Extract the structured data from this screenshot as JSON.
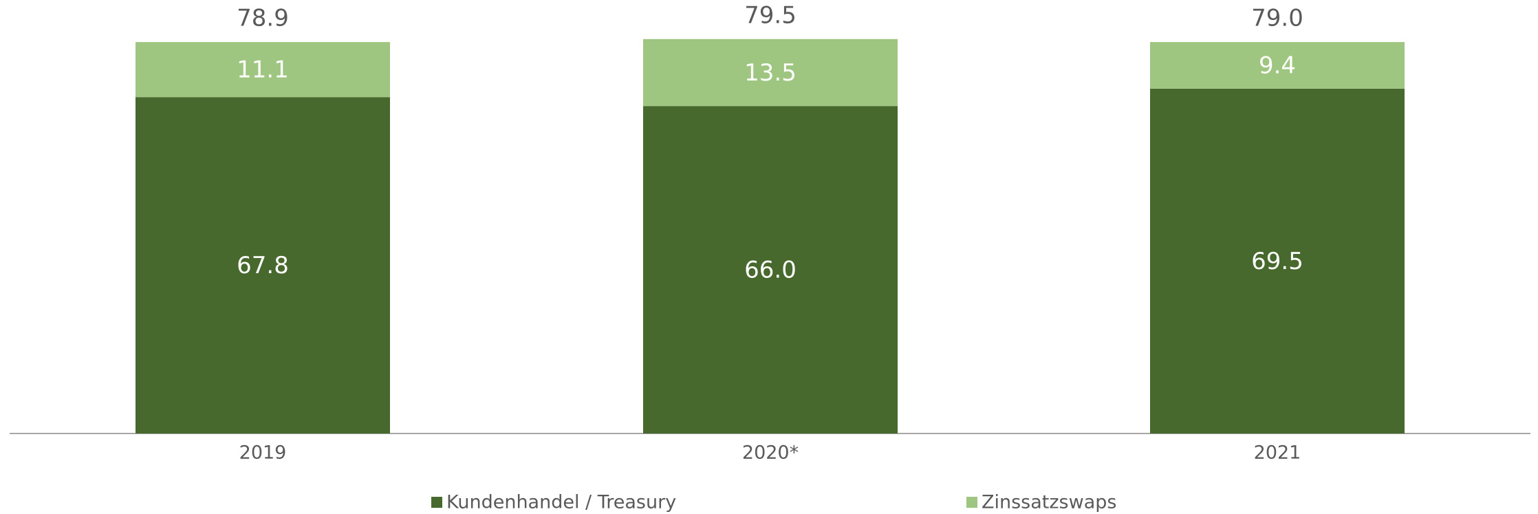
{
  "chart_data": {
    "type": "stacked_bar",
    "categories": [
      "2019",
      "2020*",
      "2021"
    ],
    "series": [
      {
        "name": "Kundenhandel / Treasury",
        "color": "#48692e",
        "values": [
          67.8,
          66.0,
          69.5
        ],
        "value_labels": [
          "67.8",
          "66.0",
          "69.5"
        ]
      },
      {
        "name": "Zinssatzswaps",
        "color": "#9fc680",
        "values": [
          11.1,
          13.5,
          9.4
        ],
        "value_labels": [
          "11.1",
          "13.5",
          "9.4"
        ]
      }
    ],
    "totals": {
      "values": [
        78.9,
        79.5,
        79.0
      ],
      "value_labels": [
        "78.9",
        "79.5",
        "79.0"
      ]
    }
  }
}
